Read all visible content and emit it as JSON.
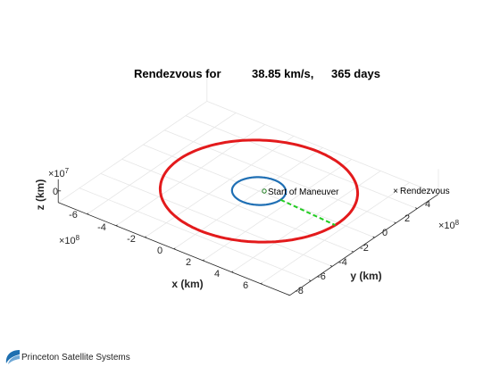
{
  "chart_data": {
    "type": "line",
    "title_parts": [
      "Rendezvous for",
      "38.85 km/s,",
      "365 days"
    ],
    "xlabel": "x (km)",
    "ylabel": "y (km)",
    "zlabel": "z (km)",
    "x_exponent_label": "×10",
    "x_exponent": "8",
    "y_exponent_label": "×10",
    "y_exponent": "8",
    "z_exponent_label": "×10",
    "z_exponent": "7",
    "xlim": [
      -8,
      8
    ],
    "ylim": [
      -8,
      6
    ],
    "zlim": [
      -1,
      1
    ],
    "x_ticks": [
      "-6",
      "-4",
      "-2",
      "0",
      "2",
      "4",
      "6"
    ],
    "y_ticks": [
      "-8",
      "-6",
      "-4",
      "-2",
      "0",
      "2",
      "4"
    ],
    "z_ticks": [
      "0"
    ],
    "grid": true,
    "series": [
      {
        "color": "#e31a1c",
        "style": "solid",
        "radius_1e8km": 5.5,
        "center": [
          0,
          0
        ]
      },
      {
        "color": "#1f6fb4",
        "style": "solid",
        "radius_1e8km": 1.5,
        "center": [
          0,
          0
        ]
      },
      {
        "color": "#22cc22",
        "style": "dashed",
        "from": [
          1.5,
          0
        ],
        "to": [
          5.5,
          -0.3
        ]
      }
    ],
    "annotations": [
      {
        "marker": "o",
        "text": "Start of Maneuver",
        "x": 1.5,
        "y": 0
      },
      {
        "marker": "x",
        "text": "Rendezvous",
        "x": 5.5,
        "y": -0.3
      }
    ]
  },
  "brand": {
    "name": "Princeton Satellite Systems"
  }
}
